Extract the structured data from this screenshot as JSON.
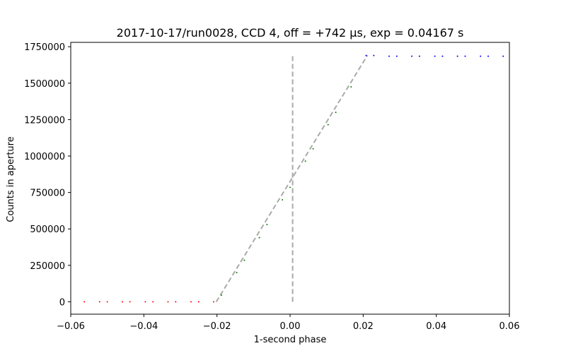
{
  "chart_data": {
    "type": "scatter",
    "title": "2017-10-17/run0028, CCD 4, off = +742 μs, exp = 0.04167 s",
    "xlabel": "1-second phase",
    "ylabel": "Counts in aperture",
    "xlim": [
      -0.06,
      0.06
    ],
    "ylim": [
      -85000,
      1780000
    ],
    "x_ticks": [
      -0.06,
      -0.04,
      -0.02,
      0.0,
      0.02,
      0.04,
      0.06
    ],
    "x_tick_labels": [
      "−0.06",
      "−0.04",
      "−0.02",
      "0.00",
      "0.02",
      "0.04",
      "0.06"
    ],
    "y_ticks": [
      0,
      250000,
      500000,
      750000,
      1000000,
      1250000,
      1500000,
      1750000
    ],
    "y_tick_labels": [
      "0",
      "250000",
      "500000",
      "750000",
      "1000000",
      "1250000",
      "1500000",
      "1750000"
    ],
    "grid": false,
    "series": [
      {
        "color": "#ff0000",
        "points": [
          [
            -0.0563,
            0
          ],
          [
            -0.0521,
            0
          ],
          [
            -0.05,
            0
          ],
          [
            -0.0459,
            0
          ],
          [
            -0.0438,
            0
          ],
          [
            -0.0396,
            0
          ],
          [
            -0.0375,
            0
          ],
          [
            -0.0334,
            0
          ],
          [
            -0.0313,
            0
          ],
          [
            -0.0271,
            0
          ],
          [
            -0.025,
            0
          ],
          [
            -0.0209,
            0
          ]
        ]
      },
      {
        "color": "#008000",
        "points": [
          [
            -0.0188,
            45000
          ],
          [
            -0.0146,
            200000
          ],
          [
            -0.0125,
            285000
          ],
          [
            -0.0084,
            440000
          ],
          [
            -0.0063,
            530000
          ],
          [
            -0.0021,
            700000
          ],
          [
            0.0,
            785000
          ],
          [
            0.0042,
            965000
          ],
          [
            0.0063,
            1050000
          ],
          [
            0.0104,
            1215000
          ],
          [
            0.0125,
            1300000
          ],
          [
            0.0167,
            1475000
          ]
        ]
      },
      {
        "color": "#0000ff",
        "points": [
          [
            0.0208,
            1690000
          ],
          [
            0.0229,
            1690000
          ],
          [
            0.0271,
            1685000
          ],
          [
            0.0292,
            1685000
          ],
          [
            0.0333,
            1685000
          ],
          [
            0.0354,
            1685000
          ],
          [
            0.0396,
            1685000
          ],
          [
            0.0417,
            1685000
          ],
          [
            0.0458,
            1685000
          ],
          [
            0.0479,
            1685000
          ],
          [
            0.0521,
            1685000
          ],
          [
            0.0542,
            1685000
          ],
          [
            0.0583,
            1685000
          ]
        ]
      }
    ],
    "fit_line": {
      "color": "#aaaaaa",
      "points": [
        [
          -0.0202,
          0
        ],
        [
          0.0212,
          1692000
        ]
      ]
    },
    "vertical_line": {
      "color": "#aaaaaa",
      "x": 0.0007,
      "y_range": [
        0,
        1692000
      ]
    }
  }
}
